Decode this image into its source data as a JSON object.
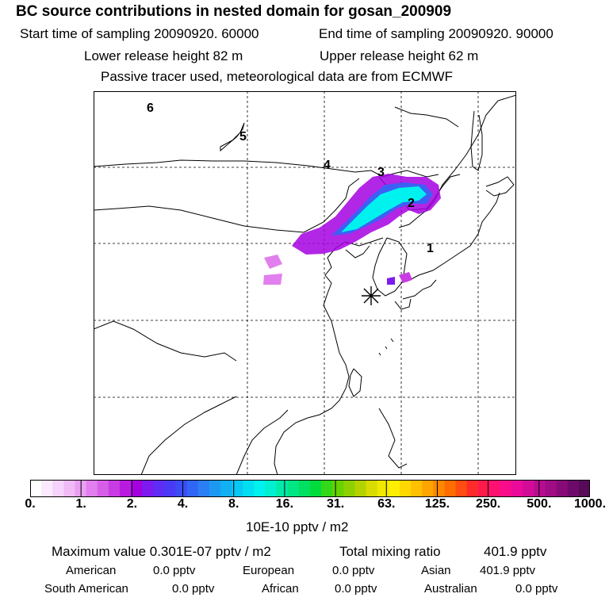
{
  "header": {
    "title": "BC  source contributions in nested domain for gosan_200909",
    "start_time": "Start time of sampling 20090920. 60000",
    "end_time": "End time of sampling 20090920. 90000",
    "lower_height": "Lower release height   82 m",
    "upper_height": "Upper release height   62 m",
    "tracer_note": "Passive tracer used, meteorological data are from ECMWF"
  },
  "map": {
    "region_labels": [
      "1",
      "2",
      "3",
      "4",
      "5",
      "6"
    ],
    "receptor_marker": "receptor-star"
  },
  "chart_data": {
    "type": "heatmap",
    "title": "BC  source contributions in nested domain for gosan_200909",
    "colorbar": {
      "tick_labels": [
        "0.",
        "1.",
        "2.",
        "4.",
        "8.",
        "16.",
        "31.",
        "63.",
        "125.",
        "250.",
        "500.",
        "1000."
      ],
      "colors": [
        "#ffffff",
        "#fbeafd",
        "#f6d3fa",
        "#f0bbf6",
        "#e99ff2",
        "#e27fee",
        "#d75fe8",
        "#c93ce3",
        "#b91ae0",
        "#a500e0",
        "#7d1bef",
        "#5f2cf5",
        "#4a3af5",
        "#3b4cf5",
        "#3166f5",
        "#2b7ff5",
        "#1c98f2",
        "#10b0f2",
        "#08c8f4",
        "#00dff2",
        "#00f2ee",
        "#00f0d0",
        "#00eaa8",
        "#00e684",
        "#00e060",
        "#00dc3c",
        "#33d818",
        "#66d200",
        "#8ed000",
        "#b4d200",
        "#d8dc00",
        "#f0e800",
        "#ffee00",
        "#ffd800",
        "#ffc000",
        "#ffa400",
        "#ff8800",
        "#ff6c00",
        "#ff4c10",
        "#ff2a2a",
        "#ff1a4c",
        "#ff1070",
        "#f80c8c",
        "#ea0a9a",
        "#d20c98",
        "#b80c90",
        "#a00c84",
        "#880a78",
        "#6e0a6a",
        "#560a58"
      ],
      "units": "10E-10 pptv / m2"
    }
  },
  "footer": {
    "max_label": "Maximum value  0.301E-07 pptv / m2",
    "total_label": "Total mixing ratio",
    "total_value": "401.9 pptv",
    "american_label": "American",
    "american_value": "0.0 pptv",
    "european_label": "European",
    "european_value": "0.0 pptv",
    "asian_label": "Asian",
    "asian_value": "401.9 pptv",
    "south_american_label": "South American",
    "south_american_value": "0.0 pptv",
    "african_label": "African",
    "african_value": "0.0 pptv",
    "australian_label": "Australian",
    "australian_value": "0.0 pptv"
  }
}
